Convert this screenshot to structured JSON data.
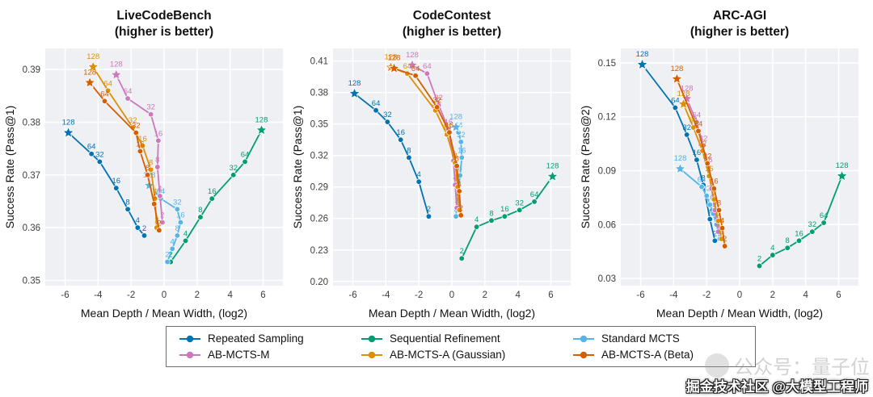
{
  "style": {
    "panel_bg": "#eef0f4",
    "grid_color": "#ffffff",
    "tick_color": "#3c3c3c",
    "text_color": "#111111"
  },
  "watermarks": {
    "faint": "公众号：量子位",
    "main": "掘金技术社区 @大模型工程师"
  },
  "legend": {
    "position": "bottom",
    "items": [
      {
        "label": "Repeated Sampling",
        "color": "#0173B2"
      },
      {
        "label": "Sequential Refinement",
        "color": "#029E73"
      },
      {
        "label": "Standard MCTS",
        "color": "#56B4E9"
      },
      {
        "label": "AB-MCTS-M",
        "color": "#CC78BC"
      },
      {
        "label": "AB-MCTS-A (Gaussian)",
        "color": "#DE8F05"
      },
      {
        "label": "AB-MCTS-A (Beta)",
        "color": "#D55E00"
      }
    ]
  },
  "chart_data": [
    {
      "type": "line",
      "title": "LiveCodeBench",
      "subtitle": "(higher is better)",
      "xlabel": "Mean Depth / Mean Width, (log2)",
      "ylabel": "Success Rate (Pass@1)",
      "xlim": [
        -7.2,
        7.2
      ],
      "ylim": [
        0.349,
        0.394
      ],
      "xticks": [
        -6,
        -4,
        -2,
        0,
        2,
        4,
        6
      ],
      "yticks": [
        0.35,
        0.36,
        0.37,
        0.38,
        0.39
      ],
      "grid": true,
      "budget_labels": [
        2,
        4,
        8,
        16,
        32,
        64,
        128
      ],
      "series": [
        {
          "name": "Repeated Sampling",
          "color": "#0173B2",
          "points": [
            [
              -1.2,
              0.3585,
              "2"
            ],
            [
              -1.6,
              0.36,
              "4"
            ],
            [
              -2.2,
              0.3635,
              "8"
            ],
            [
              -2.9,
              0.3675,
              "16"
            ],
            [
              -3.9,
              0.3725,
              "32"
            ],
            [
              -4.4,
              0.374,
              "64"
            ],
            [
              -5.8,
              0.378,
              "128"
            ]
          ]
        },
        {
          "name": "Sequential Refinement",
          "color": "#029E73",
          "points": [
            [
              0.4,
              0.3535,
              "2"
            ],
            [
              1.3,
              0.3575,
              "4"
            ],
            [
              2.2,
              0.362,
              "8"
            ],
            [
              2.9,
              0.3655,
              "16"
            ],
            [
              4.2,
              0.37,
              "32"
            ],
            [
              4.9,
              0.3725,
              "64"
            ],
            [
              5.9,
              0.3785,
              "128"
            ]
          ]
        },
        {
          "name": "Standard MCTS",
          "color": "#56B4E9",
          "points": [
            [
              0.2,
              0.3535,
              "2"
            ],
            [
              0.5,
              0.356,
              "4"
            ],
            [
              0.8,
              0.3585,
              "8"
            ],
            [
              1.0,
              0.361,
              "16"
            ],
            [
              0.8,
              0.3635,
              "32"
            ],
            [
              -0.2,
              0.3655,
              "64"
            ],
            [
              -0.9,
              0.368,
              "128"
            ]
          ]
        },
        {
          "name": "AB-MCTS-M",
          "color": "#CC78BC",
          "points": [
            [
              -0.1,
              0.361,
              "2"
            ],
            [
              -0.25,
              0.366,
              "4"
            ],
            [
              -0.4,
              0.3715,
              "8"
            ],
            [
              -0.35,
              0.3765,
              "16"
            ],
            [
              -0.8,
              0.3815,
              "32"
            ],
            [
              -2.2,
              0.3845,
              "64"
            ],
            [
              -2.9,
              0.389,
              "128"
            ]
          ]
        },
        {
          "name": "AB-MCTS-A (Gaussian)",
          "color": "#DE8F05",
          "points": [
            [
              -0.45,
              0.36,
              "2"
            ],
            [
              -0.55,
              0.3655,
              "4"
            ],
            [
              -0.8,
              0.371,
              "8"
            ],
            [
              -1.3,
              0.3755,
              "16"
            ],
            [
              -1.9,
              0.379,
              "32"
            ],
            [
              -3.4,
              0.386,
              "64"
            ],
            [
              -4.3,
              0.3905,
              "128"
            ]
          ]
        },
        {
          "name": "AB-MCTS-A (Beta)",
          "color": "#D55E00",
          "points": [
            [
              -0.3,
              0.3595,
              "2"
            ],
            [
              -0.6,
              0.3645,
              "4"
            ],
            [
              -1.0,
              0.37,
              "8"
            ],
            [
              -1.45,
              0.3745,
              "16"
            ],
            [
              -1.7,
              0.378,
              "32"
            ],
            [
              -3.6,
              0.384,
              "64"
            ],
            [
              -4.5,
              0.3875,
              "128"
            ]
          ]
        }
      ]
    },
    {
      "type": "line",
      "title": "CodeContest",
      "subtitle": "(higher is better)",
      "xlabel": "Mean Depth / Mean Width, (log2)",
      "ylabel": "Success Rate (Pass@1)",
      "xlim": [
        -7.2,
        7.2
      ],
      "ylim": [
        0.196,
        0.422
      ],
      "xticks": [
        -6,
        -4,
        -2,
        0,
        2,
        4,
        6
      ],
      "yticks": [
        0.2,
        0.23,
        0.26,
        0.29,
        0.32,
        0.35,
        0.38,
        0.41
      ],
      "grid": true,
      "budget_labels": [
        2,
        4,
        8,
        16,
        32,
        64,
        128
      ],
      "series": [
        {
          "name": "Repeated Sampling",
          "color": "#0173B2",
          "points": [
            [
              -1.4,
              0.262,
              "2"
            ],
            [
              -2.0,
              0.295,
              "4"
            ],
            [
              -2.6,
              0.318,
              "8"
            ],
            [
              -3.1,
              0.335,
              "16"
            ],
            [
              -3.9,
              0.352,
              "32"
            ],
            [
              -4.6,
              0.363,
              "64"
            ],
            [
              -5.9,
              0.379,
              "128"
            ]
          ]
        },
        {
          "name": "Sequential Refinement",
          "color": "#029E73",
          "points": [
            [
              0.6,
              0.222,
              "2"
            ],
            [
              1.5,
              0.252,
              "4"
            ],
            [
              2.4,
              0.258,
              "8"
            ],
            [
              3.2,
              0.262,
              "16"
            ],
            [
              4.1,
              0.268,
              "32"
            ],
            [
              5.0,
              0.276,
              "64"
            ],
            [
              6.1,
              0.3,
              "128"
            ]
          ]
        },
        {
          "name": "Standard MCTS",
          "color": "#56B4E9",
          "points": [
            [
              0.25,
              0.262,
              "2"
            ],
            [
              0.35,
              0.283,
              "4"
            ],
            [
              0.5,
              0.301,
              "8"
            ],
            [
              0.6,
              0.318,
              "16"
            ],
            [
              0.55,
              0.333,
              "32"
            ],
            [
              0.4,
              0.342,
              "64"
            ],
            [
              0.25,
              0.347,
              "128"
            ]
          ]
        },
        {
          "name": "AB-MCTS-M",
          "color": "#CC78BC",
          "points": [
            [
              0.3,
              0.27,
              "2"
            ],
            [
              0.2,
              0.292,
              "4"
            ],
            [
              0.1,
              0.315,
              "8"
            ],
            [
              -0.2,
              0.345,
              "16"
            ],
            [
              -0.8,
              0.368,
              "32"
            ],
            [
              -1.5,
              0.398,
              "64"
            ],
            [
              -2.4,
              0.406,
              "128"
            ]
          ]
        },
        {
          "name": "AB-MCTS-A (Gaussian)",
          "color": "#DE8F05",
          "points": [
            [
              0.45,
              0.268,
              "2"
            ],
            [
              0.35,
              0.29,
              "4"
            ],
            [
              0.2,
              0.313,
              "8"
            ],
            [
              -0.3,
              0.34,
              "16"
            ],
            [
              -1.0,
              0.363,
              "32"
            ],
            [
              -2.7,
              0.398,
              "64"
            ],
            [
              -3.7,
              0.404,
              "128"
            ]
          ]
        },
        {
          "name": "AB-MCTS-A (Beta)",
          "color": "#D55E00",
          "points": [
            [
              0.55,
              0.263,
              "2"
            ],
            [
              0.45,
              0.286,
              "4"
            ],
            [
              0.3,
              0.31,
              "8"
            ],
            [
              -0.15,
              0.342,
              "16"
            ],
            [
              -0.9,
              0.366,
              "32"
            ],
            [
              -2.2,
              0.396,
              "64"
            ],
            [
              -3.5,
              0.403,
              "128"
            ]
          ]
        }
      ]
    },
    {
      "type": "line",
      "title": "ARC-AGI",
      "subtitle": "(higher is better)",
      "xlabel": "Mean Depth / Mean Width, (log2)",
      "ylabel": "Success Rate (Pass@2)",
      "xlim": [
        -7.2,
        7.2
      ],
      "ylim": [
        0.026,
        0.158
      ],
      "xticks": [
        -6,
        -4,
        -2,
        0,
        2,
        4,
        6
      ],
      "yticks": [
        0.03,
        0.06,
        0.09,
        0.12,
        0.15
      ],
      "grid": true,
      "budget_labels": [
        2,
        4,
        8,
        16,
        32,
        64,
        128
      ],
      "series": [
        {
          "name": "Repeated Sampling",
          "color": "#0173B2",
          "points": [
            [
              -1.5,
              0.051,
              "2"
            ],
            [
              -1.8,
              0.063,
              "4"
            ],
            [
              -2.2,
              0.082,
              "8"
            ],
            [
              -2.6,
              0.096,
              "16"
            ],
            [
              -3.2,
              0.11,
              "32"
            ],
            [
              -3.9,
              0.125,
              "64"
            ],
            [
              -5.9,
              0.149,
              "128"
            ]
          ]
        },
        {
          "name": "Sequential Refinement",
          "color": "#029E73",
          "points": [
            [
              1.2,
              0.037,
              "2"
            ],
            [
              2.0,
              0.043,
              "4"
            ],
            [
              2.9,
              0.047,
              "8"
            ],
            [
              3.6,
              0.051,
              "16"
            ],
            [
              4.4,
              0.056,
              "32"
            ],
            [
              5.1,
              0.061,
              "64"
            ],
            [
              6.2,
              0.087,
              "128"
            ]
          ]
        },
        {
          "name": "Standard MCTS",
          "color": "#56B4E9",
          "points": [
            [
              -1.2,
              0.052,
              "2"
            ],
            [
              -1.4,
              0.06,
              "4"
            ],
            [
              -1.6,
              0.066,
              "8"
            ],
            [
              -1.8,
              0.071,
              "16"
            ],
            [
              -2.0,
              0.076,
              "32"
            ],
            [
              -2.3,
              0.081,
              "64"
            ],
            [
              -3.6,
              0.091,
              "128"
            ]
          ]
        },
        {
          "name": "AB-MCTS-M",
          "color": "#CC78BC",
          "points": [
            [
              -1.3,
              0.056,
              "2"
            ],
            [
              -1.5,
              0.068,
              "4"
            ],
            [
              -1.7,
              0.08,
              "8"
            ],
            [
              -1.9,
              0.092,
              "16"
            ],
            [
              -2.2,
              0.104,
              "32"
            ],
            [
              -2.6,
              0.117,
              "64"
            ],
            [
              -3.2,
              0.13,
              "128"
            ]
          ]
        },
        {
          "name": "AB-MCTS-A (Gaussian)",
          "color": "#DE8F05",
          "points": [
            [
              -1.1,
              0.052,
              "2"
            ],
            [
              -1.3,
              0.062,
              "4"
            ],
            [
              -1.55,
              0.074,
              "8"
            ],
            [
              -1.85,
              0.087,
              "16"
            ],
            [
              -2.25,
              0.101,
              "32"
            ],
            [
              -2.8,
              0.114,
              "64"
            ],
            [
              -3.4,
              0.127,
              "128"
            ]
          ]
        },
        {
          "name": "AB-MCTS-A (Beta)",
          "color": "#D55E00",
          "points": [
            [
              -0.9,
              0.048,
              "2"
            ],
            [
              -1.05,
              0.058,
              "4"
            ],
            [
              -1.25,
              0.068,
              "8"
            ],
            [
              -1.55,
              0.08,
              "16"
            ],
            [
              -1.95,
              0.094,
              "32"
            ],
            [
              -2.5,
              0.112,
              "64"
            ],
            [
              -3.8,
              0.141,
              "128"
            ]
          ]
        }
      ]
    }
  ]
}
